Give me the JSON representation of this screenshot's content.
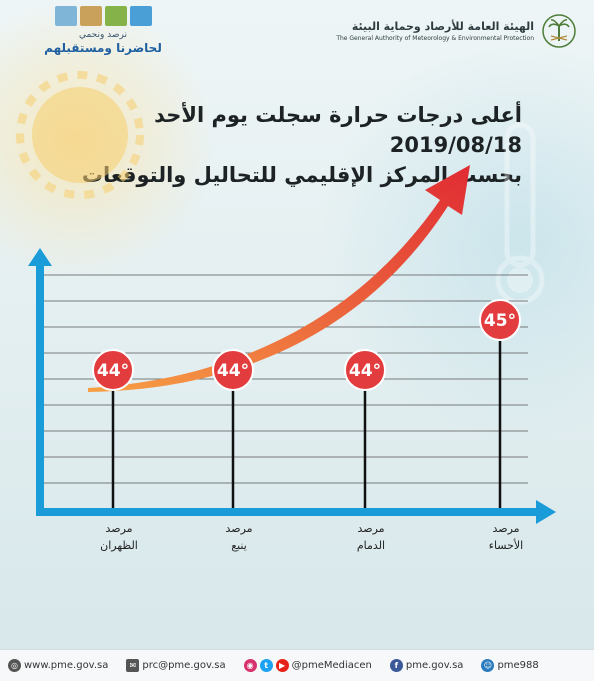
{
  "header": {
    "org_name_ar": "الهيئة العامة للأرصاد وحماية البيئة",
    "org_name_en": "The General Authority of Meteorology & Environmental Protection",
    "campaign_line1": "نرصد ونحمي",
    "campaign_line2": "لحاضرنا ومستقبلهم"
  },
  "title": {
    "line1": "أعلى درجات حرارة سجلت يوم الأحد 2019/08/18",
    "line2": "بحسب المركز الإقليمي للتحاليل والتوقعات"
  },
  "chart_data": {
    "type": "bar",
    "title": "أعلى درجات حرارة سجلت يوم الأحد 2019/08/18",
    "subtitle": "بحسب المركز الإقليمي للتحاليل والتوقعات",
    "categories": [
      {
        "line1": "مرصد",
        "line2": "الظهران"
      },
      {
        "line1": "مرصد",
        "line2": "ينبع"
      },
      {
        "line1": "مرصد",
        "line2": "الدمام"
      },
      {
        "line1": "مرصد",
        "line2": "الأحساء"
      }
    ],
    "values": [
      44,
      44,
      44,
      45
    ],
    "labels": [
      "44°",
      "44°",
      "44°",
      "45°"
    ],
    "grid": true,
    "colors": {
      "marker": "#e23c3e",
      "axis": "#1a9cd8",
      "arrow_start": "#f7a045",
      "arrow_end": "#e02b33"
    }
  },
  "footer": {
    "website": "www.pme.gov.sa",
    "email": "prc@pme.gov.sa",
    "social": "@pmeMediacen",
    "facebook": "pme.gov.sa",
    "snapchat": "pme988"
  }
}
